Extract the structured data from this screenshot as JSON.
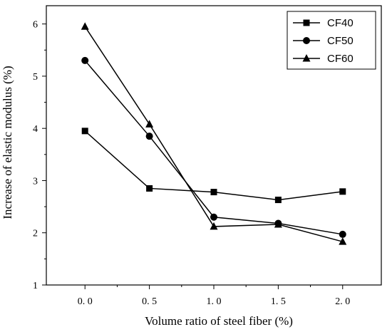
{
  "chart_data": {
    "type": "line",
    "xlabel": "Volume ratio of steel fiber (%)",
    "ylabel": "Increase of elastic modulus (%)",
    "x": [
      0.0,
      0.5,
      1.0,
      1.5,
      2.0
    ],
    "xticks": [
      "0. 0",
      "0. 5",
      "1. 0",
      "1. 5",
      "2. 0"
    ],
    "yticks": [
      "1",
      "2",
      "3",
      "4",
      "5",
      "6"
    ],
    "xlim": [
      -0.3,
      2.3
    ],
    "ylim": [
      1,
      6.35
    ],
    "grid": false,
    "legend_position": "top-right",
    "series": [
      {
        "name": "CF40",
        "marker": "square",
        "values": [
          3.95,
          2.85,
          2.78,
          2.63,
          2.79
        ]
      },
      {
        "name": "CF50",
        "marker": "circle",
        "values": [
          5.3,
          3.85,
          2.3,
          2.18,
          1.97
        ]
      },
      {
        "name": "CF60",
        "marker": "triangle",
        "values": [
          5.95,
          4.08,
          2.12,
          2.16,
          1.83
        ]
      }
    ]
  }
}
